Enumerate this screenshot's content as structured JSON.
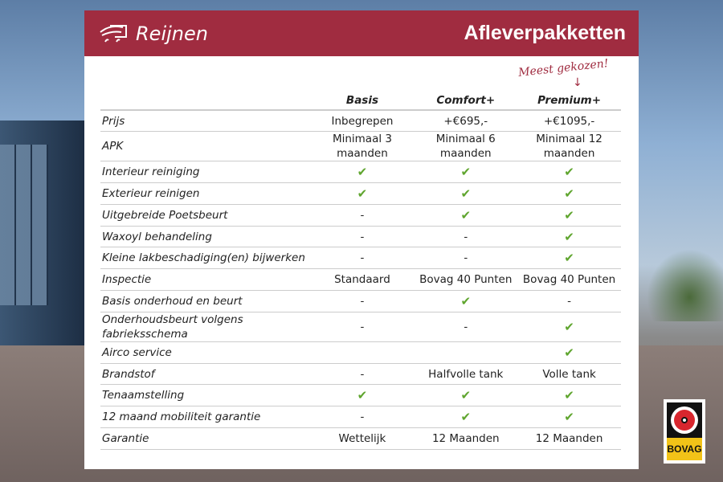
{
  "header": {
    "logo": "Reijnen",
    "title": "Afleverpakketten",
    "note": "Meest gekozen!"
  },
  "columns": [
    "Basis",
    "Comfort+",
    "Premium+"
  ],
  "rows": [
    {
      "label": "Prijs",
      "values": [
        "Inbegrepen",
        "+€695,-",
        "+€1095,-"
      ]
    },
    {
      "label": "APK",
      "values": [
        "Minimaal 3 maanden",
        "Minimaal 6 maanden",
        "Minimaal 12 maanden"
      ]
    },
    {
      "label": "Interieur reiniging",
      "values": [
        "✔",
        "✔",
        "✔"
      ]
    },
    {
      "label": "Exterieur reinigen",
      "values": [
        "✔",
        "✔",
        "✔"
      ]
    },
    {
      "label": "Uitgebreide Poetsbeurt",
      "values": [
        "-",
        "✔",
        "✔"
      ]
    },
    {
      "label": "Waxoyl behandeling",
      "values": [
        "-",
        "-",
        "✔"
      ]
    },
    {
      "label": "Kleine lakbeschadiging(en) bijwerken",
      "values": [
        "-",
        "-",
        "✔"
      ]
    },
    {
      "label": "Inspectie",
      "values": [
        "Standaard",
        "Bovag 40 Punten",
        "Bovag 40 Punten"
      ]
    },
    {
      "label": "Basis onderhoud en beurt",
      "values": [
        "-",
        "✔",
        "-"
      ]
    },
    {
      "label": "Onderhoudsbeurt volgens fabrieksschema",
      "values": [
        "-",
        "-",
        "✔"
      ]
    },
    {
      "label": "Airco service",
      "values": [
        "",
        "",
        "✔"
      ]
    },
    {
      "label": "Brandstof",
      "values": [
        "-",
        "Halfvolle tank",
        "Volle tank"
      ]
    },
    {
      "label": "Tenaamstelling",
      "values": [
        "✔",
        "✔",
        "✔"
      ]
    },
    {
      "label": "12 maand mobiliteit garantie",
      "values": [
        "-",
        "✔",
        "✔"
      ]
    },
    {
      "label": "Garantie",
      "values": [
        "Wettelijk",
        "12 Maanden",
        "12 Maanden"
      ]
    }
  ],
  "badge": {
    "text": "BOVAG"
  },
  "colors": {
    "brand": "#a02c40",
    "check": "#5fa52e"
  }
}
